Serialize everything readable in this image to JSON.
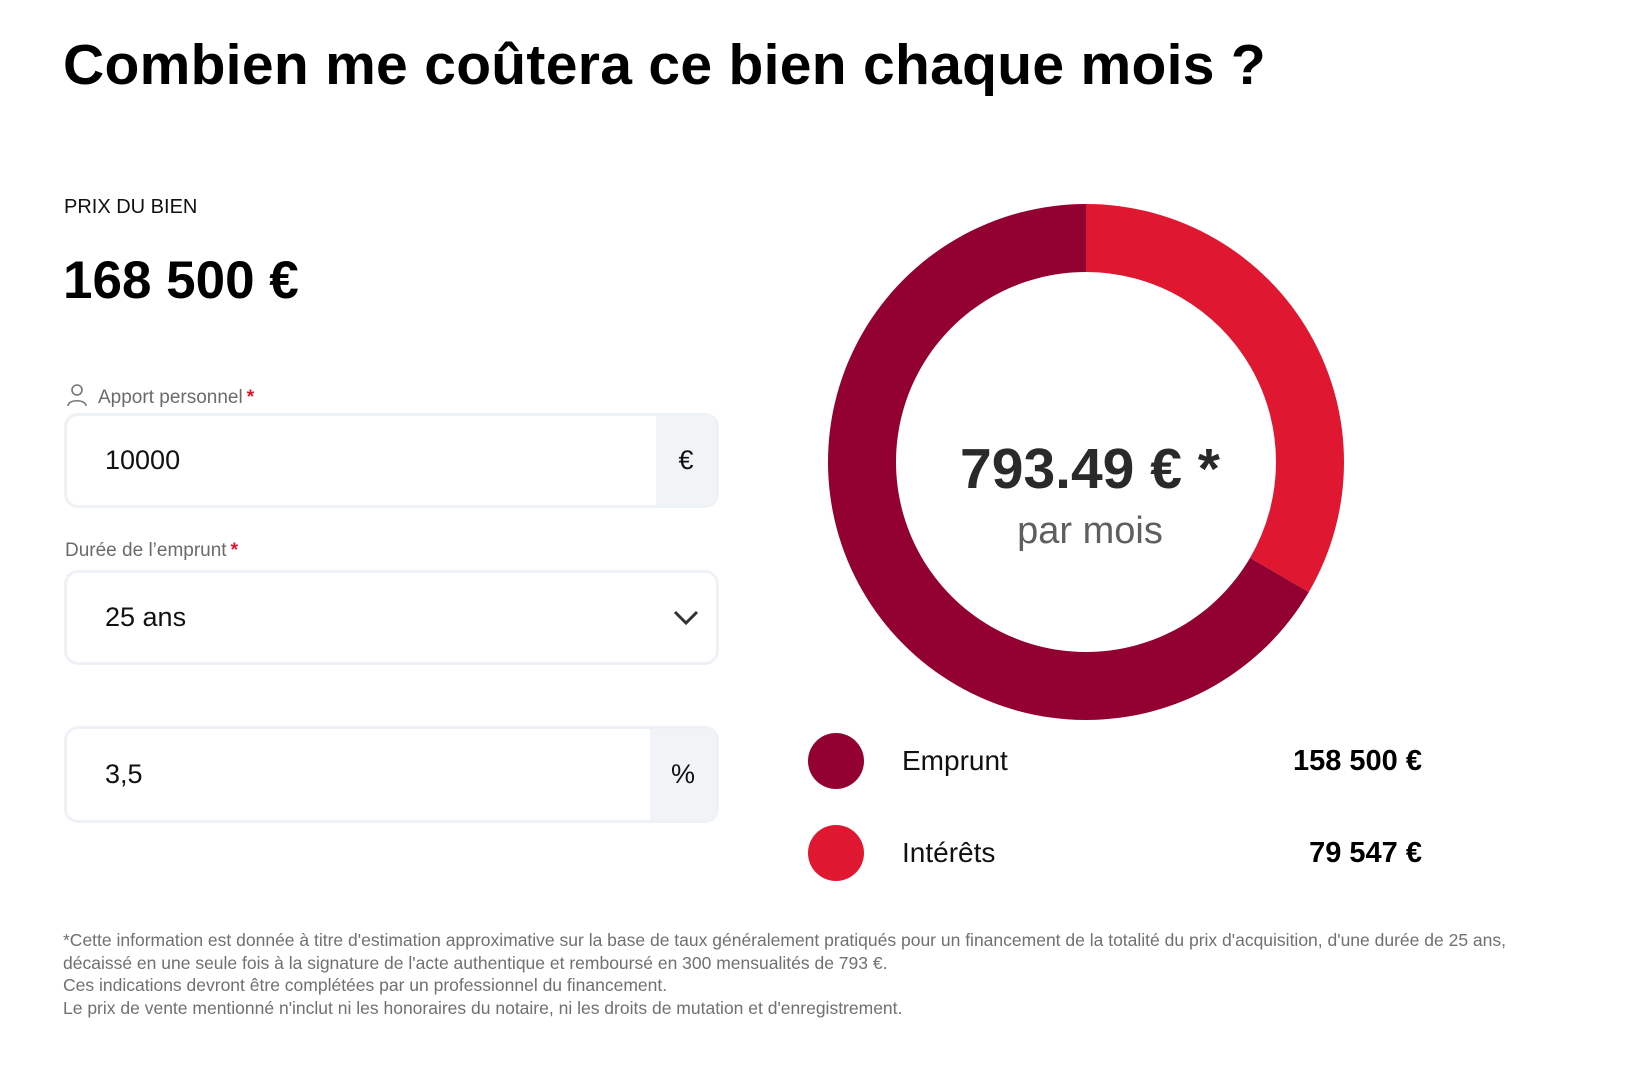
{
  "title": "Combien me coûtera ce bien chaque mois ?",
  "price": {
    "label": "PRIX DU BIEN",
    "value": "168 500 €"
  },
  "form": {
    "apport": {
      "label": "Apport personnel",
      "required_mark": "*",
      "icon": "user-icon",
      "value": "10000",
      "unit": "€"
    },
    "duree": {
      "label": "Durée de l’emprunt",
      "required_mark": "*",
      "value": "25 ans",
      "icon": "chevron-down-icon"
    },
    "taux": {
      "value": "3,5",
      "unit": "%"
    }
  },
  "chart_data": {
    "type": "pie",
    "variant": "donut",
    "center_value": "793.49 € *",
    "center_label": "par mois",
    "series": [
      {
        "name": "Emprunt",
        "value": 158500,
        "display": "158 500 €",
        "color": "#930032"
      },
      {
        "name": "Intérêts",
        "value": 79547,
        "display": "79 547 €",
        "color": "#e01730"
      }
    ]
  },
  "footer": [
    "*Cette information est donnée à titre d'estimation approximative sur la base de taux généralement pratiqués pour un financement de la totalité du prix d'acquisition, d'une durée de 25 ans, décaissé en une seule fois à la signature de l'acte authentique et remboursé en 300 mensualités de 793 €.",
    "Ces indications devront être complétées par un professionnel du financement.",
    "Le prix de vente mentionné n'inclut ni les honoraires du notaire, ni les droits de mutation et d'enregistrement."
  ]
}
